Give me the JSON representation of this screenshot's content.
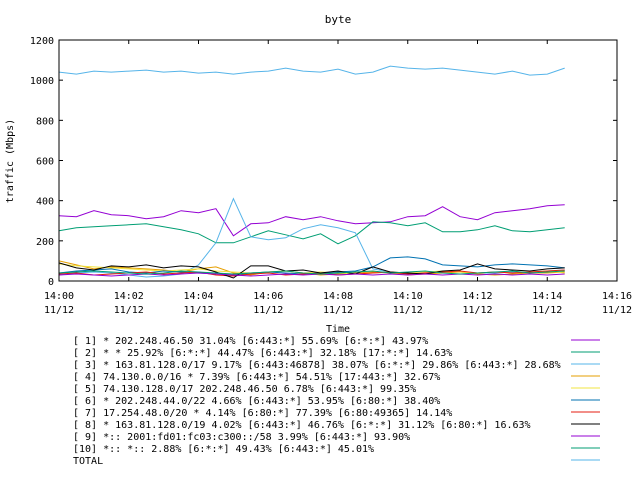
{
  "chart_data": {
    "type": "line",
    "title": "byte",
    "xlabel": "Time",
    "ylabel": "traffic (Mbps)",
    "ylim": [
      0,
      1200
    ],
    "y_ticks": [
      "0",
      "200",
      "400",
      "600",
      "800",
      "1000",
      "1200"
    ],
    "x_ticks": [
      {
        "time": "14:00",
        "date": "11/12"
      },
      {
        "time": "14:02",
        "date": "11/12"
      },
      {
        "time": "14:04",
        "date": "11/12"
      },
      {
        "time": "14:06",
        "date": "11/12"
      },
      {
        "time": "14:08",
        "date": "11/12"
      },
      {
        "time": "14:10",
        "date": "11/12"
      },
      {
        "time": "14:12",
        "date": "11/12"
      },
      {
        "time": "14:14",
        "date": "11/12"
      },
      {
        "time": "14:16",
        "date": "11/12"
      }
    ],
    "xlim": [
      "14:00",
      "14:16"
    ],
    "x": [
      "14:00:00",
      "14:00:30",
      "14:01:00",
      "14:01:30",
      "14:02:00",
      "14:02:30",
      "14:03:00",
      "14:03:30",
      "14:04:00",
      "14:04:30",
      "14:05:00",
      "14:05:30",
      "14:06:00",
      "14:06:30",
      "14:07:00",
      "14:07:30",
      "14:08:00",
      "14:08:30",
      "14:09:00",
      "14:09:30",
      "14:10:00",
      "14:10:30",
      "14:11:00",
      "14:11:30",
      "14:12:00",
      "14:12:30",
      "14:13:00",
      "14:13:30",
      "14:14:00",
      "14:14:30"
    ],
    "grid": false,
    "legend_position": "bottom",
    "series": [
      {
        "name": "[ 1] * 202.248.46.50 31.04%  [6:443:*] 55.69% [6:*:*] 43.97%",
        "color": "#9400d3",
        "values": [
          325,
          320,
          350,
          330,
          325,
          310,
          320,
          350,
          340,
          360,
          225,
          285,
          290,
          320,
          305,
          320,
          300,
          285,
          290,
          295,
          320,
          325,
          370,
          320,
          305,
          340,
          350,
          360,
          375,
          380
        ]
      },
      {
        "name": "[ 2] * * 25.92%  [6:*:*] 44.47% [6:443:*] 32.18% [17:*:*] 14.63%",
        "color": "#009e73",
        "values": [
          250,
          265,
          270,
          275,
          280,
          285,
          270,
          255,
          235,
          190,
          190,
          220,
          250,
          230,
          210,
          235,
          185,
          225,
          295,
          290,
          275,
          290,
          245,
          245,
          255,
          275,
          250,
          245,
          255,
          265
        ]
      },
      {
        "name": "[ 3] * 163.81.128.0/17 9.17%  [6:443:46878] 38.07% [6:*:*] 29.86% [6:443:*] 28.68%",
        "color": "#56b4e9",
        "values": [
          30,
          40,
          45,
          40,
          30,
          20,
          25,
          35,
          80,
          190,
          410,
          220,
          205,
          215,
          260,
          280,
          265,
          240,
          60,
          45,
          35,
          40,
          50,
          45,
          40,
          40,
          45,
          45,
          50,
          55
        ]
      },
      {
        "name": "[ 4] 74.130.0.0/16 * 7.39%  [6:443:*] 54.51% [17:443:*] 32.67%",
        "color": "#e69f00",
        "values": [
          100,
          80,
          60,
          70,
          65,
          60,
          55,
          45,
          60,
          70,
          40,
          30,
          45,
          50,
          40,
          30,
          35,
          40,
          45,
          40,
          30,
          35,
          40,
          45,
          35,
          30,
          35,
          40,
          40,
          45
        ]
      },
      {
        "name": "[ 5] 74.130.128.0/17 202.248.46.50 6.78%  [6:443:*] 99.35%",
        "color": "#f0e442",
        "values": [
          85,
          75,
          70,
          65,
          60,
          55,
          50,
          55,
          60,
          50,
          45,
          40,
          45,
          50,
          40,
          45,
          40,
          35,
          40,
          45,
          40,
          45,
          50,
          45,
          40,
          45,
          40,
          45,
          50,
          40
        ]
      },
      {
        "name": "[ 6] * 202.248.44.0/22 4.66%  [6:443:*] 53.95% [6:80:*] 38.40%",
        "color": "#0072b2",
        "values": [
          40,
          50,
          55,
          60,
          45,
          40,
          50,
          45,
          40,
          35,
          30,
          40,
          45,
          40,
          35,
          40,
          45,
          50,
          70,
          115,
          120,
          110,
          80,
          75,
          70,
          80,
          85,
          80,
          75,
          65
        ]
      },
      {
        "name": "[ 7] 17.254.48.0/20 * 4.14%  [6:80:*] 77.39% [6:80:49365] 14.14%",
        "color": "#e51e10",
        "values": [
          35,
          40,
          30,
          35,
          40,
          45,
          35,
          40,
          45,
          30,
          25,
          35,
          40,
          30,
          35,
          40,
          30,
          35,
          40,
          45,
          35,
          40,
          45,
          50,
          40,
          45,
          40,
          45,
          50,
          55
        ]
      },
      {
        "name": "[ 8] * 163.81.128.0/19 4.02%  [6:443:*] 46.76% [6:*:*] 31.12% [6:80:*] 16.63%",
        "color": "#000000",
        "values": [
          90,
          65,
          55,
          75,
          70,
          80,
          65,
          75,
          70,
          45,
          15,
          75,
          75,
          50,
          55,
          40,
          50,
          35,
          70,
          45,
          40,
          35,
          50,
          55,
          85,
          60,
          55,
          50,
          60,
          65
        ]
      },
      {
        "name": "[ 9] *:: 2001:fd01:fc03:c300::/58 3.99%  [6:443:*] 93.90%",
        "color": "#9400d3",
        "values": [
          30,
          35,
          30,
          25,
          30,
          35,
          30,
          35,
          40,
          35,
          30,
          25,
          30,
          35,
          30,
          35,
          30,
          35,
          30,
          35,
          30,
          35,
          30,
          35,
          30,
          35,
          30,
          35,
          30,
          35
        ]
      },
      {
        "name": "[10] *:: *:: 2.88%  [6:*:*] 49.43% [6:443:*] 45.01%",
        "color": "#009e73",
        "values": [
          40,
          45,
          50,
          45,
          40,
          35,
          40,
          50,
          45,
          40,
          35,
          40,
          45,
          50,
          40,
          35,
          40,
          45,
          50,
          40,
          45,
          50,
          40,
          35,
          40,
          45,
          50,
          40,
          45,
          50
        ]
      },
      {
        "name": "TOTAL",
        "color": "#56b4e9",
        "values": [
          1040,
          1030,
          1045,
          1040,
          1045,
          1050,
          1040,
          1045,
          1035,
          1040,
          1030,
          1040,
          1045,
          1060,
          1045,
          1040,
          1055,
          1030,
          1040,
          1070,
          1060,
          1055,
          1060,
          1050,
          1040,
          1030,
          1045,
          1025,
          1030,
          1060
        ]
      }
    ]
  }
}
